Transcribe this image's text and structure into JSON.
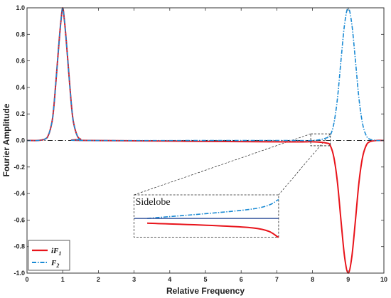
{
  "chart_data": {
    "type": "line",
    "xlabel": "Relative Frequency",
    "ylabel": "Fourier Amplitude",
    "xlim": [
      0,
      10
    ],
    "ylim": [
      -1.0,
      1.0
    ],
    "xticks": [
      "0",
      "1",
      "2",
      "3",
      "4",
      "5",
      "6",
      "7",
      "8",
      "9",
      "10"
    ],
    "yticks": [
      "1.0",
      "0.8",
      "0.6",
      "0.4",
      "0.2",
      "0.0",
      "-0.2",
      "-0.4",
      "-0.6",
      "-0.8",
      "-1.0"
    ],
    "baseline": 0,
    "grid": false,
    "legend_position": "bottom-left",
    "series": [
      {
        "name": "iF",
        "subscript": "1",
        "color": "#e8141b",
        "style": "solid",
        "points": [
          [
            0.0,
            0.0
          ],
          [
            0.3,
            0.0
          ],
          [
            0.5,
            0.01
          ],
          [
            0.6,
            0.04
          ],
          [
            0.7,
            0.14
          ],
          [
            0.75,
            0.25
          ],
          [
            0.8,
            0.41
          ],
          [
            0.85,
            0.58
          ],
          [
            0.9,
            0.75
          ],
          [
            0.95,
            0.9
          ],
          [
            1.0,
            1.0
          ],
          [
            1.05,
            0.9
          ],
          [
            1.1,
            0.75
          ],
          [
            1.15,
            0.58
          ],
          [
            1.2,
            0.41
          ],
          [
            1.25,
            0.25
          ],
          [
            1.3,
            0.14
          ],
          [
            1.4,
            0.04
          ],
          [
            1.5,
            0.01
          ],
          [
            1.7,
            0.0
          ],
          [
            7.0,
            -0.01
          ],
          [
            8.0,
            -0.01
          ],
          [
            8.4,
            -0.02
          ],
          [
            8.5,
            -0.04
          ],
          [
            8.6,
            -0.13
          ],
          [
            8.7,
            -0.32
          ],
          [
            8.8,
            -0.61
          ],
          [
            8.9,
            -0.88
          ],
          [
            9.0,
            -1.0
          ],
          [
            9.1,
            -0.88
          ],
          [
            9.2,
            -0.61
          ],
          [
            9.3,
            -0.32
          ],
          [
            9.4,
            -0.13
          ],
          [
            9.5,
            -0.04
          ],
          [
            9.6,
            -0.01
          ],
          [
            9.8,
            0.0
          ],
          [
            10.0,
            0.0
          ]
        ]
      },
      {
        "name": "F",
        "subscript": "2",
        "color": "#1a8ad4",
        "style": "dash-dot",
        "points": [
          [
            0.0,
            0.0
          ],
          [
            0.3,
            0.0
          ],
          [
            0.5,
            0.01
          ],
          [
            0.6,
            0.04
          ],
          [
            0.7,
            0.14
          ],
          [
            0.75,
            0.25
          ],
          [
            0.8,
            0.41
          ],
          [
            0.85,
            0.58
          ],
          [
            0.9,
            0.75
          ],
          [
            0.95,
            0.9
          ],
          [
            1.0,
            1.0
          ],
          [
            1.05,
            0.9
          ],
          [
            1.1,
            0.75
          ],
          [
            1.15,
            0.58
          ],
          [
            1.2,
            0.41
          ],
          [
            1.25,
            0.25
          ],
          [
            1.3,
            0.14
          ],
          [
            1.4,
            0.04
          ],
          [
            1.5,
            0.01
          ],
          [
            1.7,
            0.0
          ],
          [
            7.0,
            0.0
          ],
          [
            8.0,
            0.0
          ],
          [
            8.4,
            0.02
          ],
          [
            8.5,
            0.04
          ],
          [
            8.6,
            0.13
          ],
          [
            8.7,
            0.32
          ],
          [
            8.8,
            0.61
          ],
          [
            8.9,
            0.88
          ],
          [
            9.0,
            1.0
          ],
          [
            9.1,
            0.88
          ],
          [
            9.2,
            0.61
          ],
          [
            9.3,
            0.32
          ],
          [
            9.4,
            0.13
          ],
          [
            9.5,
            0.04
          ],
          [
            9.6,
            0.01
          ],
          [
            9.8,
            0.0
          ],
          [
            10.0,
            0.0
          ]
        ]
      }
    ],
    "inset": {
      "label": "Sidelobe",
      "source_x": [
        7.95,
        8.5
      ],
      "source_y": [
        -0.04,
        0.05
      ],
      "placed_x": [
        3.0,
        7.05
      ],
      "placed_y": [
        -0.73,
        -0.41
      ]
    }
  }
}
